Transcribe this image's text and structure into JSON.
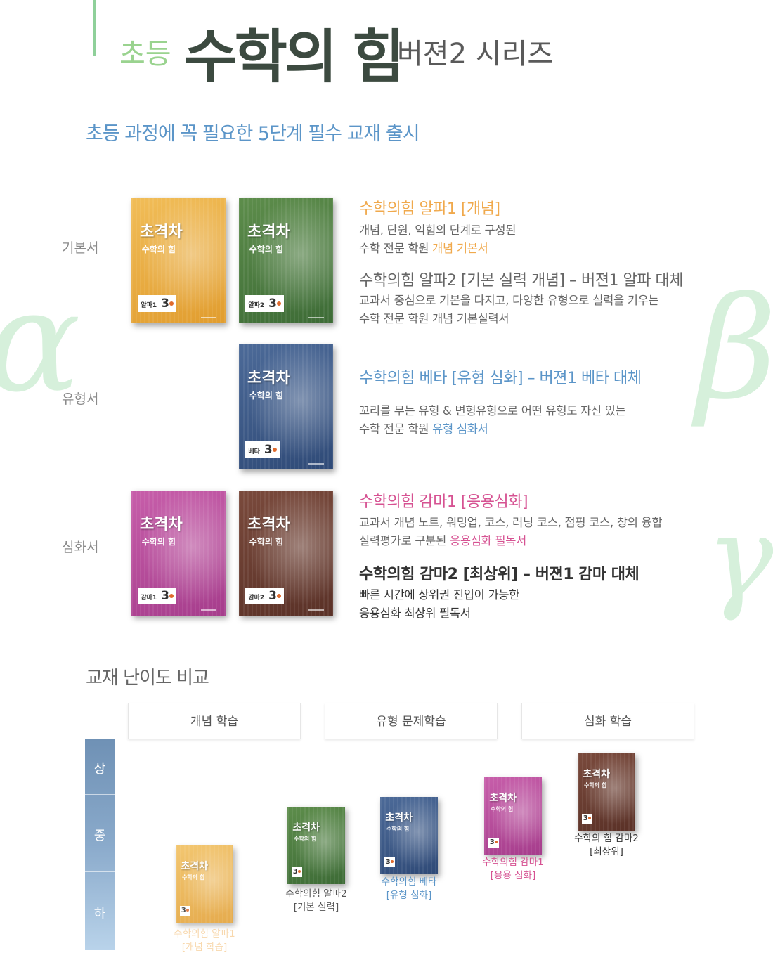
{
  "header": {
    "prefix": "초등",
    "main": "수학의 힘",
    "suffix": "버젼2 시리즈"
  },
  "subtitle": "초등 과정에 꼭 필요한 5단계 필수 교재 출시",
  "greek": {
    "alpha": "α",
    "beta": "β",
    "gamma": "γ"
  },
  "rows": {
    "basic": "기본서",
    "type": "유형서",
    "advanced": "심화서"
  },
  "book_cover": {
    "title": "초격차",
    "sub": "수학의 힘",
    "grade": "3",
    "grade_tags": [
      "알파1",
      "알파2",
      "베타",
      "감마1",
      "감마2"
    ]
  },
  "products": {
    "alpha1": {
      "head": "수학의힘 알파1 [개념]",
      "line1": "개념, 단원, 익힘의 단계로 구성된",
      "line2_pre": "수학 전문 학원 ",
      "line2_em": "개념 기본서"
    },
    "alpha2": {
      "head": "수학의힘 알파2 [기본 실력 개념] – 버젼1 알파 대체",
      "line1": "교과서 중심으로 기본을 다지고, 다양한 유형으로 실력을 키우는",
      "line2": "수학 전문 학원 개념 기본실력서"
    },
    "beta": {
      "head": "수학의힘 베타 [유형 심화] – 버젼1 베타 대체",
      "line1": "꼬리를 무는 유형 & 변형유형으로 어떤 유형도 자신 있는",
      "line2_pre": "수학 전문 학원 ",
      "line2_em": "유형 심화서"
    },
    "gamma1": {
      "head": "수학의힘 감마1 [응용심화]",
      "line1": "교과서 개념 노트, 워밍업, 코스, 러닝 코스, 점핑 코스, 창의 융합",
      "line2_pre": "실력평가로 구분된 ",
      "line2_em": "응용심화 필독서"
    },
    "gamma2": {
      "head": "수학의힘 감마2 [최상위] – 버젼1 감마 대체",
      "line1": "빠른 시간에 상위권 진입이 가능한",
      "line2": "응용심화 최상위 필독서"
    }
  },
  "comparison": {
    "title": "교재 난이도 비교",
    "columns": [
      "개념 학습",
      "유형 문제학습",
      "심화 학습"
    ],
    "levels": [
      "상",
      "중",
      "하"
    ],
    "captions": [
      {
        "name": "수학의힘 알파1",
        "tag": "[개념 학습]"
      },
      {
        "name": "수학의힘 알파2",
        "tag": "[기본 실력]"
      },
      {
        "name": "수학의힘 베타",
        "tag": "[유형 심화]"
      },
      {
        "name": "수학의힘 감마1",
        "tag": "[응용 심화]"
      },
      {
        "name": "수학의 힘 감마2",
        "tag": "[최상위]"
      }
    ]
  },
  "colors": {
    "orange": "#f0a94c",
    "green": "#4a7a40",
    "blue": "#3d5a88",
    "pink": "#b84c9c",
    "brown": "#6a3d31",
    "accent_blue": "#5b95c8"
  }
}
